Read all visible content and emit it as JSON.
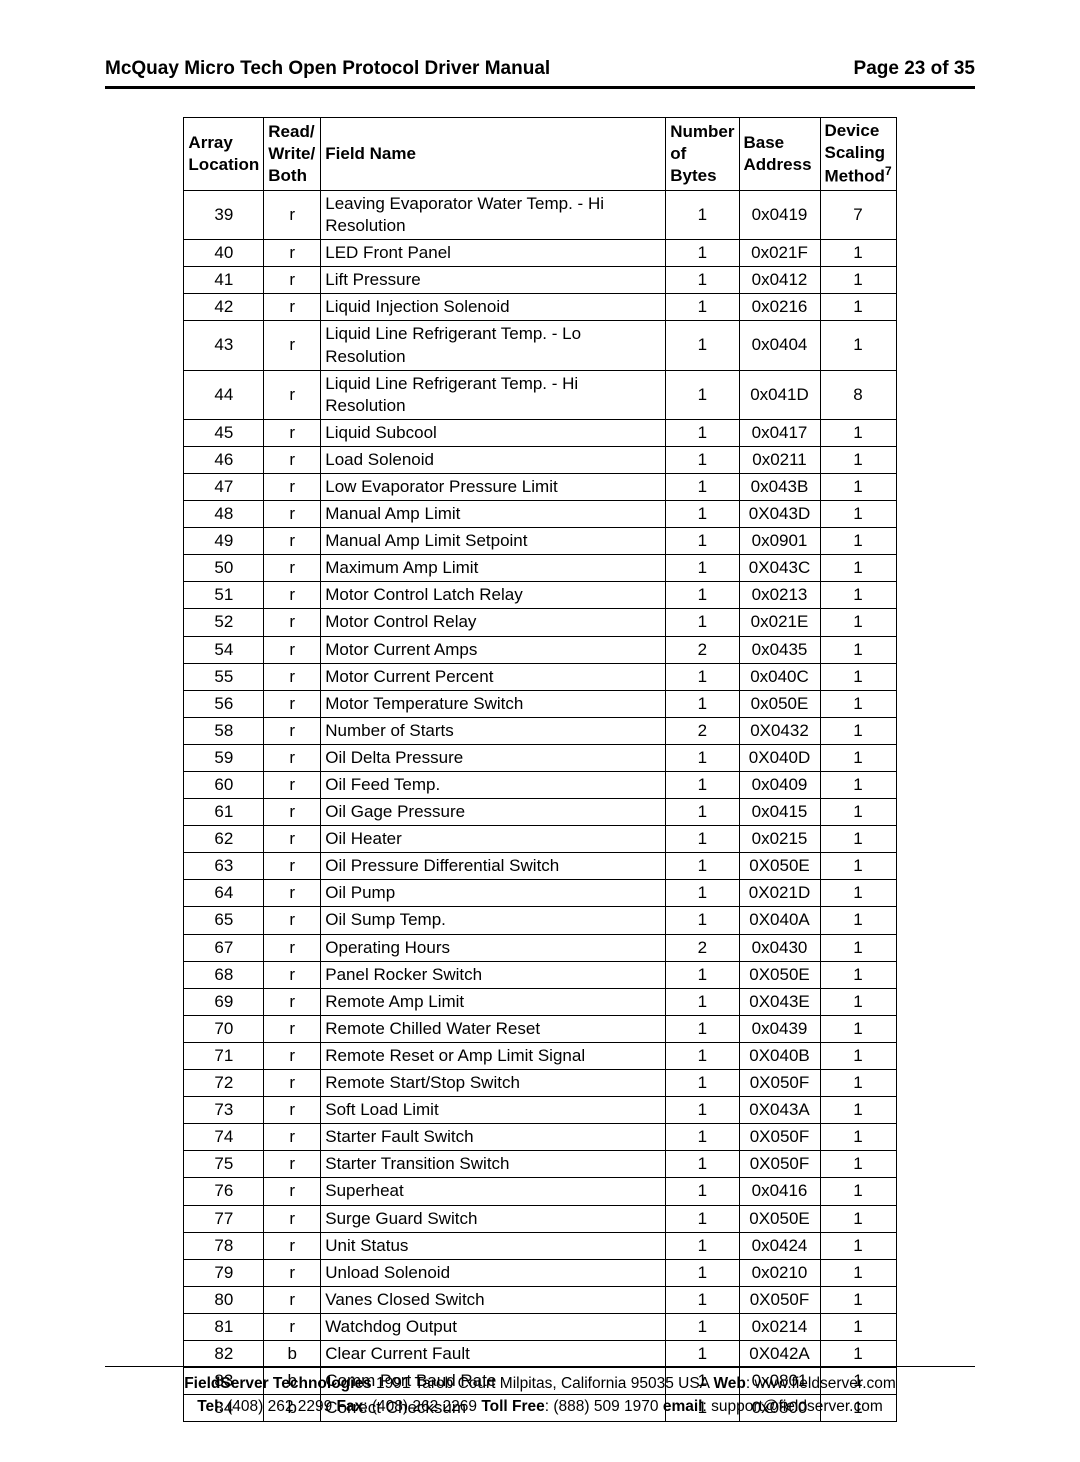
{
  "header": {
    "title": "McQuay Micro Tech Open Protocol Driver Manual",
    "page_label": "Page 23 of 35"
  },
  "table": {
    "columns": {
      "array_location_line1": "Array",
      "array_location_line2": "Location",
      "rwb_line1": "Read/",
      "rwb_line2": "Write/",
      "rwb_line3": "Both",
      "field_name": "Field Name",
      "num_bytes_line1": "Number",
      "num_bytes_line2": "of Bytes",
      "base_addr_line1": "Base",
      "base_addr_line2": "Address",
      "method_line1": "Device",
      "method_line2": "Scaling",
      "method_line3": "Method",
      "method_sup": "7"
    },
    "rows": [
      {
        "loc": "39",
        "rwb": "r",
        "name": "Leaving Evaporator Water Temp. - Hi Resolution",
        "num": "1",
        "addr": "0x0419",
        "meth": "7"
      },
      {
        "loc": "40",
        "rwb": "r",
        "name": "LED Front Panel",
        "num": "1",
        "addr": "0x021F",
        "meth": "1"
      },
      {
        "loc": "41",
        "rwb": "r",
        "name": "Lift Pressure",
        "num": "1",
        "addr": "0x0412",
        "meth": "1"
      },
      {
        "loc": "42",
        "rwb": "r",
        "name": "Liquid Injection Solenoid",
        "num": "1",
        "addr": "0x0216",
        "meth": "1"
      },
      {
        "loc": "43",
        "rwb": "r",
        "name": "Liquid Line Refrigerant Temp. - Lo Resolution",
        "num": "1",
        "addr": "0x0404",
        "meth": "1"
      },
      {
        "loc": "44",
        "rwb": "r",
        "name": "Liquid Line Refrigerant Temp. - Hi Resolution",
        "num": "1",
        "addr": "0x041D",
        "meth": "8"
      },
      {
        "loc": "45",
        "rwb": "r",
        "name": "Liquid Subcool",
        "num": "1",
        "addr": "0x0417",
        "meth": "1"
      },
      {
        "loc": "46",
        "rwb": "r",
        "name": "Load Solenoid",
        "num": "1",
        "addr": "0x0211",
        "meth": "1"
      },
      {
        "loc": "47",
        "rwb": "r",
        "name": "Low Evaporator Pressure Limit",
        "num": "1",
        "addr": "0x043B",
        "meth": "1"
      },
      {
        "loc": "48",
        "rwb": "r",
        "name": "Manual Amp Limit",
        "num": "1",
        "addr": "0X043D",
        "meth": "1"
      },
      {
        "loc": "49",
        "rwb": "r",
        "name": "Manual Amp Limit Setpoint",
        "num": "1",
        "addr": "0x0901",
        "meth": "1"
      },
      {
        "loc": "50",
        "rwb": "r",
        "name": "Maximum Amp Limit",
        "num": "1",
        "addr": "0X043C",
        "meth": "1"
      },
      {
        "loc": "51",
        "rwb": "r",
        "name": "Motor Control Latch Relay",
        "num": "1",
        "addr": "0x0213",
        "meth": "1"
      },
      {
        "loc": "52",
        "rwb": "r",
        "name": "Motor Control Relay",
        "num": "1",
        "addr": "0x021E",
        "meth": "1"
      },
      {
        "loc": "54",
        "rwb": "r",
        "name": "Motor Current Amps",
        "num": "2",
        "addr": "0x0435",
        "meth": "1"
      },
      {
        "loc": "55",
        "rwb": "r",
        "name": "Motor Current Percent",
        "num": "1",
        "addr": "0x040C",
        "meth": "1"
      },
      {
        "loc": "56",
        "rwb": "r",
        "name": "Motor Temperature Switch",
        "num": "1",
        "addr": "0x050E",
        "meth": "1"
      },
      {
        "loc": "58",
        "rwb": "r",
        "name": "Number of Starts",
        "num": "2",
        "addr": "0X0432",
        "meth": "1"
      },
      {
        "loc": "59",
        "rwb": "r",
        "name": "Oil Delta Pressure",
        "num": "1",
        "addr": "0X040D",
        "meth": "1"
      },
      {
        "loc": "60",
        "rwb": "r",
        "name": "Oil Feed Temp.",
        "num": "1",
        "addr": "0x0409",
        "meth": "1"
      },
      {
        "loc": "61",
        "rwb": "r",
        "name": "Oil Gage Pressure",
        "num": "1",
        "addr": "0x0415",
        "meth": "1"
      },
      {
        "loc": "62",
        "rwb": "r",
        "name": "Oil Heater",
        "num": "1",
        "addr": "0x0215",
        "meth": "1"
      },
      {
        "loc": "63",
        "rwb": "r",
        "name": "Oil Pressure Differential Switch",
        "num": "1",
        "addr": "0X050E",
        "meth": "1"
      },
      {
        "loc": "64",
        "rwb": "r",
        "name": "Oil Pump",
        "num": "1",
        "addr": "0X021D",
        "meth": "1"
      },
      {
        "loc": "65",
        "rwb": "r",
        "name": "Oil Sump Temp.",
        "num": "1",
        "addr": "0X040A",
        "meth": "1"
      },
      {
        "loc": "67",
        "rwb": "r",
        "name": "Operating Hours",
        "num": "2",
        "addr": "0x0430",
        "meth": "1"
      },
      {
        "loc": "68",
        "rwb": "r",
        "name": "Panel Rocker Switch",
        "num": "1",
        "addr": "0X050E",
        "meth": "1"
      },
      {
        "loc": "69",
        "rwb": "r",
        "name": "Remote Amp Limit",
        "num": "1",
        "addr": "0X043E",
        "meth": "1"
      },
      {
        "loc": "70",
        "rwb": "r",
        "name": "Remote Chilled Water Reset",
        "num": "1",
        "addr": "0x0439",
        "meth": "1"
      },
      {
        "loc": "71",
        "rwb": "r",
        "name": "Remote Reset or Amp Limit Signal",
        "num": "1",
        "addr": "0X040B",
        "meth": "1"
      },
      {
        "loc": "72",
        "rwb": "r",
        "name": "Remote Start/Stop Switch",
        "num": "1",
        "addr": "0X050F",
        "meth": "1"
      },
      {
        "loc": "73",
        "rwb": "r",
        "name": "Soft Load Limit",
        "num": "1",
        "addr": "0X043A",
        "meth": "1"
      },
      {
        "loc": "74",
        "rwb": "r",
        "name": "Starter Fault Switch",
        "num": "1",
        "addr": "0X050F",
        "meth": "1"
      },
      {
        "loc": "75",
        "rwb": "r",
        "name": "Starter Transition Switch",
        "num": "1",
        "addr": "0X050F",
        "meth": "1"
      },
      {
        "loc": "76",
        "rwb": "r",
        "name": "Superheat",
        "num": "1",
        "addr": "0x0416",
        "meth": "1"
      },
      {
        "loc": "77",
        "rwb": "r",
        "name": "Surge Guard Switch",
        "num": "1",
        "addr": "0X050E",
        "meth": "1"
      },
      {
        "loc": "78",
        "rwb": "r",
        "name": "Unit Status",
        "num": "1",
        "addr": "0x0424",
        "meth": "1"
      },
      {
        "loc": "79",
        "rwb": "r",
        "name": "Unload Solenoid",
        "num": "1",
        "addr": "0x0210",
        "meth": "1"
      },
      {
        "loc": "80",
        "rwb": "r",
        "name": "Vanes Closed Switch",
        "num": "1",
        "addr": "0X050F",
        "meth": "1"
      },
      {
        "loc": "81",
        "rwb": "r",
        "name": "Watchdog Output",
        "num": "1",
        "addr": "0x0214",
        "meth": "1"
      },
      {
        "loc": "82",
        "rwb": "b",
        "name": "Clear Current Fault",
        "num": "1",
        "addr": "0X042A",
        "meth": "1"
      },
      {
        "loc": "83",
        "rwb": "b",
        "name": "Comm Port Baud Rate",
        "num": "1",
        "addr": "0x0801",
        "meth": "1"
      },
      {
        "loc": "84",
        "rwb": "b",
        "name": "Correct Checksum",
        "num": "1",
        "addr": "0x0800",
        "meth": "1"
      }
    ]
  },
  "footer": {
    "company_bold": "FieldServer Technologies",
    "address": " 1991 Tarob Court Milpitas, California 95035 USA   ",
    "web_label": "Web",
    "web_value": ": www.fieldserver.com",
    "tel_label": "Tel",
    "tel_value": ": (408) 262 2299   ",
    "fax_label": "Fax",
    "fax_value": ": (408) 262 2269   ",
    "tollfree_label": "Toll Free",
    "tollfree_value": ": (888) 509 1970   ",
    "email_label": "email",
    "email_value": ": support@fieldserver.com"
  }
}
